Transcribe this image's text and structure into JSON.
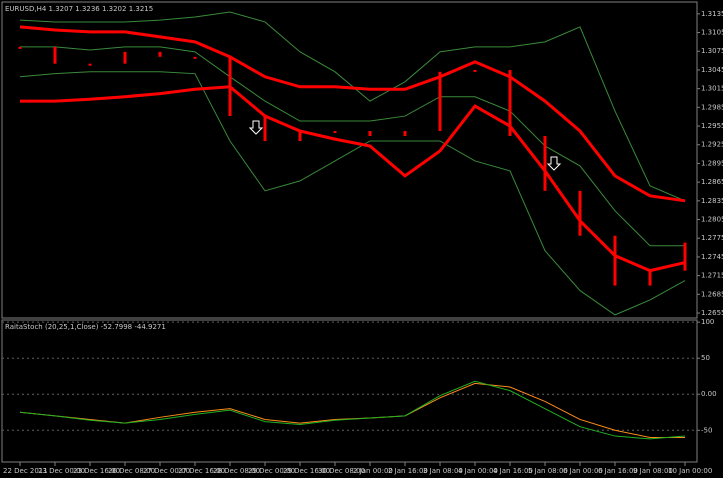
{
  "chart_data": [
    {
      "type": "line",
      "title": "EURUSD,H4  1.3207 1.3236 1.3202 1.3215",
      "categories": [
        "22 Dec 2011",
        "23 Dec 00:00",
        "23 Dec 16:00",
        "26 Dec 08:00",
        "27 Dec 00:00",
        "27 Dec 16:00",
        "28 Dec 08:00",
        "29 Dec 00:00",
        "29 Dec 16:00",
        "30 Dec 08:00",
        "2 Jan 00:00",
        "2 Jan 16:00",
        "3 Jan 08:00",
        "4 Jan 00:00",
        "4 Jan 16:00",
        "5 Jan 08:00",
        "6 Jan 00:00",
        "6 Jan 16:00",
        "9 Jan 08:00",
        "10 Jan 00:00"
      ],
      "series": [
        {
          "color": "#3a8a3a",
          "line_width": 1,
          "values": [
            1.3125,
            1.3122,
            1.3122,
            1.3122,
            1.3125,
            1.313,
            1.3138,
            1.3122,
            1.3074,
            1.3042,
            1.2995,
            1.3026,
            1.3074,
            1.3082,
            1.3082,
            1.309,
            1.3114,
            1.2979,
            1.2859,
            1.2835
          ]
        },
        {
          "color": "#3a8a3a",
          "line_width": 1,
          "values": [
            1.3082,
            1.3082,
            1.3077,
            1.3082,
            1.3082,
            1.3074,
            1.3034,
            1.2995,
            1.2963,
            1.2963,
            1.2963,
            1.2971,
            1.3002,
            1.3002,
            1.2979,
            1.2923,
            1.2891,
            1.2819,
            1.2763,
            1.2763
          ]
        },
        {
          "color": "#3a8a3a",
          "line_width": 1,
          "values": [
            1.3034,
            1.3039,
            1.3042,
            1.3042,
            1.3042,
            1.3039,
            1.2931,
            1.2851,
            1.2867,
            1.2899,
            1.2931,
            1.2931,
            1.2931,
            1.2899,
            1.2883,
            1.2755,
            1.2691,
            1.2652,
            1.2676,
            1.2707
          ]
        },
        {
          "color": "#ff0000",
          "line_width": 3,
          "values": [
            1.3114,
            1.3109,
            1.3106,
            1.3106,
            1.3098,
            1.309,
            1.3066,
            1.3034,
            1.3018,
            1.3018,
            1.3014,
            1.3014,
            1.3034,
            1.3058,
            1.3034,
            1.2995,
            1.2947,
            1.2875,
            1.2843,
            1.2835
          ]
        },
        {
          "color": "#ff0000",
          "line_width": 3,
          "values": [
            1.2995,
            1.2995,
            1.2998,
            1.3002,
            1.3007,
            1.3014,
            1.3018,
            1.2971,
            1.2947,
            1.2934,
            1.2923,
            1.2875,
            1.2915,
            1.2987,
            1.2955,
            1.2883,
            1.2803,
            1.2747,
            1.2723,
            1.2736
          ]
        },
        {
          "color": "#ff0000",
          "line_width": 1,
          "style": "bars",
          "values": [
            1.3082,
            1.3055,
            1.3055,
            1.3074,
            1.3066,
            1.3066,
            1.2971,
            1.2931,
            1.2947,
            1.2947,
            1.2939,
            1.2947,
            1.3042,
            1.3045,
            1.2939,
            1.2851,
            1.2779,
            1.2699,
            1.2723,
            1.2768
          ]
        }
      ],
      "ylim": [
        1.2647,
        1.3154
      ],
      "yticks": [
        1.3135,
        1.3105,
        1.3075,
        1.3045,
        1.3015,
        1.2985,
        1.2955,
        1.2925,
        1.2895,
        1.2865,
        1.2835,
        1.2805,
        1.2775,
        1.2745,
        1.2715,
        1.2685,
        1.2655
      ]
    },
    {
      "type": "line",
      "title": "RaitaStoch (20,25,1,Close) -52.7998 -44.9271",
      "series": [
        {
          "color": "#ff8c1a",
          "line_width": 1,
          "values": [
            -25,
            -30,
            -35,
            -40,
            -32,
            -25,
            -20,
            -35,
            -40,
            -35,
            -33,
            -30,
            -5,
            15,
            10,
            -10,
            -35,
            -50,
            -60,
            -60
          ]
        },
        {
          "color": "#22b022",
          "line_width": 1,
          "values": [
            -25,
            -30,
            -36,
            -40,
            -35,
            -28,
            -22,
            -38,
            -42,
            -36,
            -33,
            -30,
            -2,
            18,
            5,
            -20,
            -45,
            -58,
            -62,
            -58
          ]
        }
      ],
      "ylim": [
        -94,
        103
      ],
      "yticks": [
        100,
        50,
        {
          "value": 0,
          "label": "0.00"
        },
        -50
      ],
      "grid": true
    }
  ]
}
